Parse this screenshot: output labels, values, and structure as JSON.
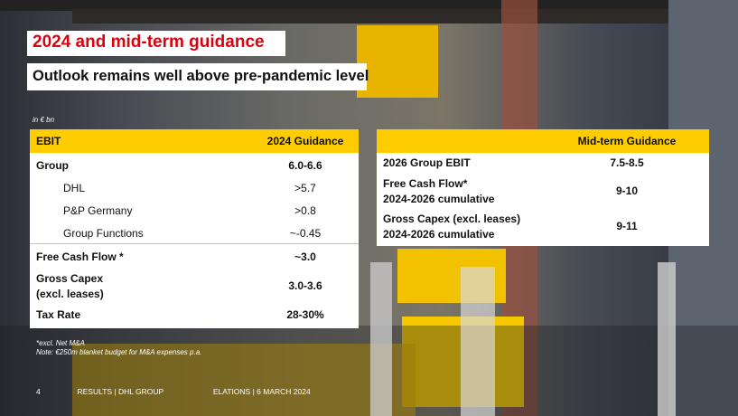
{
  "slide": {
    "title": "2024 and mid-term guidance",
    "subtitle": "Outlook remains well above pre-pandemic level",
    "unit_note": "in € bn"
  },
  "left_table": {
    "header": {
      "col1": "EBIT",
      "col2": "2024 Guidance"
    },
    "rows": [
      {
        "label": "Group",
        "value": "6.0-6.6"
      },
      {
        "label": "DHL",
        "value": ">5.7"
      },
      {
        "label": "P&P Germany",
        "value": ">0.8"
      },
      {
        "label": "Group Functions",
        "value": "~-0.45"
      },
      {
        "label": "Free Cash Flow *",
        "value": "~3.0"
      },
      {
        "label": "Gross Capex",
        "label2": "(excl. leases)",
        "value": "3.0-3.6"
      },
      {
        "label": "Tax Rate",
        "value": "28-30%"
      }
    ]
  },
  "right_table": {
    "header": {
      "col2": "Mid-term Guidance"
    },
    "rows": [
      {
        "label": "2026 Group EBIT",
        "value": "7.5-8.5"
      },
      {
        "label": "Free Cash Flow*",
        "label2": "2024-2026 cumulative",
        "value": "9-10"
      },
      {
        "label": "Gross Capex (excl. leases)",
        "label2": "2024-2026 cumulative",
        "value": "9-11"
      }
    ]
  },
  "footnotes": {
    "note1": "*excl. Net M&A",
    "note2": "Note: €250m blanket budget for M&A expenses p.a."
  },
  "footer": {
    "page": "4",
    "text_left": "RESULTS | DHL GROUP",
    "text_right": "ELATIONS | 6 MARCH 2024"
  }
}
